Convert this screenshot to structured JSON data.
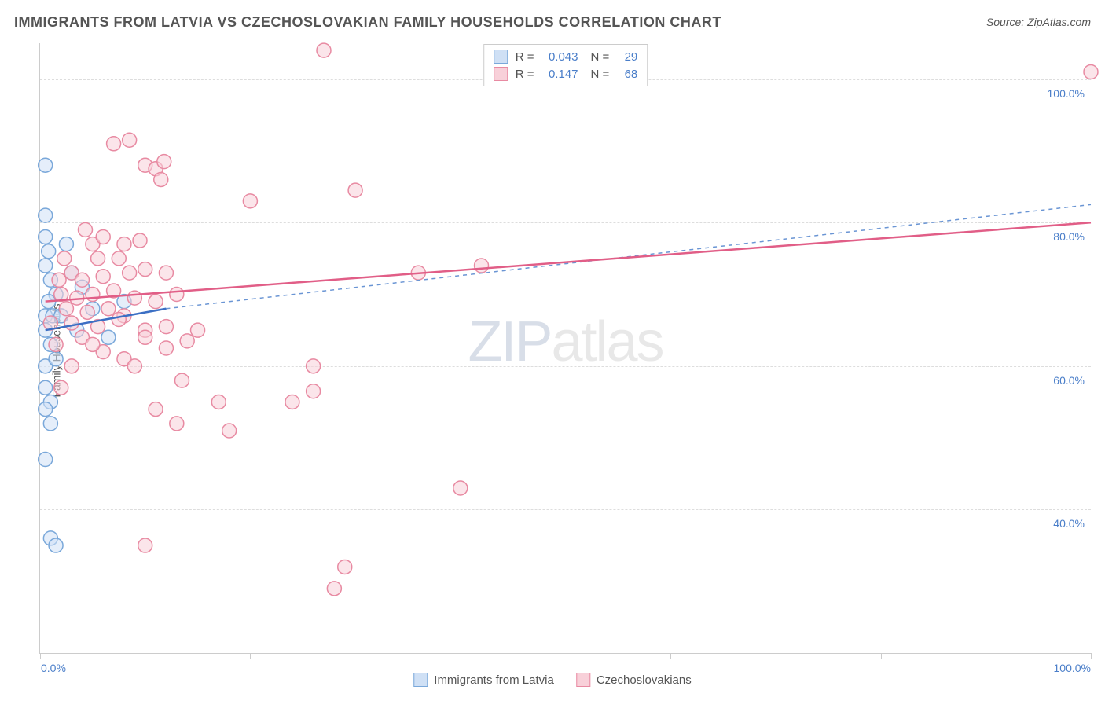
{
  "title": "IMMIGRANTS FROM LATVIA VS CZECHOSLOVAKIAN FAMILY HOUSEHOLDS CORRELATION CHART",
  "source": "Source: ZipAtlas.com",
  "ylabel": "Family Households",
  "watermark_a": "ZIP",
  "watermark_b": "atlas",
  "chart": {
    "type": "scatter",
    "xlim": [
      0,
      100
    ],
    "ylim": [
      20,
      105
    ],
    "x_ticks": [
      0,
      20,
      40,
      60,
      80,
      100
    ],
    "y_gridlines": [
      40,
      60,
      80,
      100
    ],
    "y_tick_labels": [
      "40.0%",
      "60.0%",
      "80.0%",
      "100.0%"
    ],
    "x_left_label": "0.0%",
    "x_right_label": "100.0%",
    "background_color": "#ffffff",
    "grid_color": "#dddddd",
    "axis_color": "#cccccc",
    "marker_radius": 9,
    "marker_stroke_width": 1.5,
    "series": [
      {
        "name": "Immigrants from Latvia",
        "fill": "#cfe0f5",
        "stroke": "#7aa8da",
        "fill_opacity": 0.55,
        "R": "0.043",
        "N": "29",
        "trend": {
          "x1": 0.5,
          "y1": 65,
          "x2": 12,
          "y2": 68,
          "color": "#3b6fc4",
          "width": 2.5,
          "dash": "none"
        },
        "trend_ext": {
          "x1": 12,
          "y1": 68,
          "x2": 100,
          "y2": 82.5,
          "color": "#6a95d4",
          "width": 1.5,
          "dash": "5,5"
        },
        "points": [
          [
            0.5,
            88
          ],
          [
            0.5,
            81
          ],
          [
            0.5,
            78
          ],
          [
            0.8,
            76
          ],
          [
            0.5,
            74
          ],
          [
            1.0,
            72
          ],
          [
            1.5,
            70
          ],
          [
            0.8,
            69
          ],
          [
            0.5,
            67
          ],
          [
            1.2,
            67
          ],
          [
            2.0,
            67
          ],
          [
            0.5,
            65
          ],
          [
            1.0,
            63
          ],
          [
            0.5,
            60
          ],
          [
            1.5,
            61
          ],
          [
            0.5,
            57
          ],
          [
            1.0,
            55
          ],
          [
            0.5,
            54
          ],
          [
            1.0,
            52
          ],
          [
            0.5,
            47
          ],
          [
            1.0,
            36
          ],
          [
            1.5,
            35
          ],
          [
            5.0,
            68
          ],
          [
            6.5,
            64
          ],
          [
            8.0,
            69
          ],
          [
            4.0,
            71
          ],
          [
            3.0,
            73
          ],
          [
            2.5,
            77
          ],
          [
            3.5,
            65
          ]
        ]
      },
      {
        "name": "Czechoslovakians",
        "fill": "#f8d0d9",
        "stroke": "#e88aa2",
        "fill_opacity": 0.55,
        "R": "0.147",
        "N": "68",
        "trend": {
          "x1": 0.5,
          "y1": 69,
          "x2": 100,
          "y2": 80,
          "color": "#e15e87",
          "width": 2.5,
          "dash": "none"
        },
        "points": [
          [
            27,
            104
          ],
          [
            100,
            101
          ],
          [
            7,
            91
          ],
          [
            8.5,
            91.5
          ],
          [
            10,
            88
          ],
          [
            11,
            87.5
          ],
          [
            11.8,
            88.5
          ],
          [
            11.5,
            86
          ],
          [
            20,
            83
          ],
          [
            30,
            84.5
          ],
          [
            5,
            77
          ],
          [
            6,
            78
          ],
          [
            8,
            77
          ],
          [
            9.5,
            77.5
          ],
          [
            5.5,
            75
          ],
          [
            7.5,
            75
          ],
          [
            3,
            73
          ],
          [
            4,
            72
          ],
          [
            6,
            72.5
          ],
          [
            8.5,
            73
          ],
          [
            10,
            73.5
          ],
          [
            12,
            73
          ],
          [
            2,
            70
          ],
          [
            3.5,
            69.5
          ],
          [
            5,
            70
          ],
          [
            7,
            70.5
          ],
          [
            9,
            69.5
          ],
          [
            11,
            69
          ],
          [
            13,
            70
          ],
          [
            2.5,
            68
          ],
          [
            4.5,
            67.5
          ],
          [
            6.5,
            68
          ],
          [
            8,
            67
          ],
          [
            3,
            66
          ],
          [
            5.5,
            65.5
          ],
          [
            7.5,
            66.5
          ],
          [
            10,
            65
          ],
          [
            12,
            65.5
          ],
          [
            4,
            64
          ],
          [
            10,
            64
          ],
          [
            12,
            62.5
          ],
          [
            14,
            63.5
          ],
          [
            6,
            62
          ],
          [
            8,
            61
          ],
          [
            5,
            63
          ],
          [
            36,
            73
          ],
          [
            42,
            74
          ],
          [
            15,
            65
          ],
          [
            17,
            55
          ],
          [
            24,
            55
          ],
          [
            26,
            56.5
          ],
          [
            11,
            54
          ],
          [
            13,
            52
          ],
          [
            18,
            51
          ],
          [
            13.5,
            58
          ],
          [
            26,
            60
          ],
          [
            40,
            43
          ],
          [
            10,
            35
          ],
          [
            29,
            32
          ],
          [
            28,
            29
          ],
          [
            9,
            60
          ],
          [
            3,
            60
          ],
          [
            2,
            57
          ],
          [
            1.5,
            63
          ],
          [
            1,
            66
          ],
          [
            1.8,
            72
          ],
          [
            2.3,
            75
          ],
          [
            4.3,
            79
          ]
        ]
      }
    ]
  },
  "legend_top": {
    "r_label": "R =",
    "n_label": "N ="
  },
  "colors": {
    "tick_label": "#4a7ec9",
    "text": "#555555"
  }
}
